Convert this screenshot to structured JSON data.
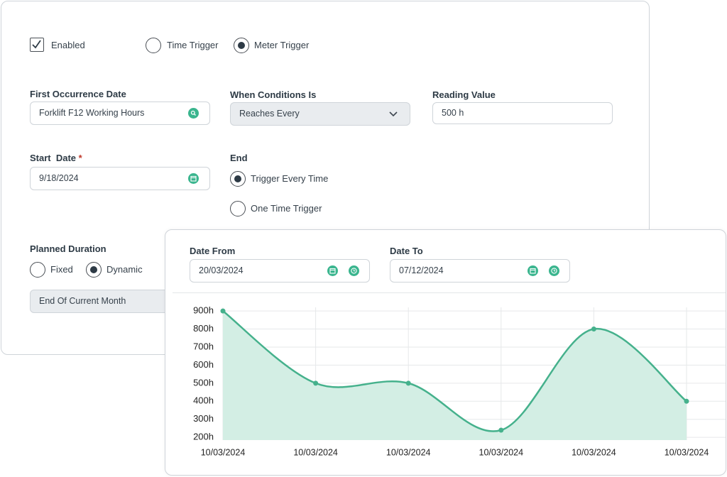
{
  "form": {
    "enabled": {
      "label": "Enabled",
      "checked": true
    },
    "trigger_options": [
      {
        "label": "Time Trigger",
        "selected": false
      },
      {
        "label": "Meter Trigger",
        "selected": true
      }
    ],
    "first_occurrence": {
      "label": "First Occurrence Date",
      "value": "Forklift F12 Working Hours"
    },
    "when_conditions": {
      "label": "When Conditions Is",
      "value": "Reaches Every"
    },
    "reading_value": {
      "label": "Reading Value",
      "value": "500 h"
    },
    "start_date": {
      "label": "Start  Date",
      "required": "*",
      "value": "9/18/2024"
    },
    "end": {
      "label": "End",
      "options": [
        {
          "label": "Trigger Every Time",
          "selected": true
        },
        {
          "label": "One Time Trigger",
          "selected": false
        }
      ]
    },
    "planned_duration": {
      "label": "Planned Duration",
      "options": [
        {
          "label": "Fixed",
          "selected": false
        },
        {
          "label": "Dynamic",
          "selected": true
        }
      ],
      "value": "End Of Current Month"
    }
  },
  "date_filter": {
    "from": {
      "label": "Date From",
      "value": "20/03/2024"
    },
    "to": {
      "label": "Date To",
      "value": "07/12/2024"
    }
  },
  "chart_data": {
    "type": "area",
    "categories": [
      "10/03/2024",
      "10/03/2024",
      "10/03/2024",
      "10/03/2024",
      "10/03/2024",
      "10/03/2024"
    ],
    "values": [
      900,
      500,
      500,
      240,
      800,
      400
    ],
    "color": "#45b18c",
    "fill": "#d3eee4",
    "ylim": [
      185,
      920
    ],
    "yticks": [
      {
        "value": 200,
        "label": "200h"
      },
      {
        "value": 300,
        "label": "300h"
      },
      {
        "value": 400,
        "label": "400h"
      },
      {
        "value": 500,
        "label": "500h"
      },
      {
        "value": 600,
        "label": "600h"
      },
      {
        "value": 700,
        "label": "700h"
      },
      {
        "value": 800,
        "label": "800h"
      },
      {
        "value": 900,
        "label": "900h"
      }
    ],
    "grid": true
  }
}
